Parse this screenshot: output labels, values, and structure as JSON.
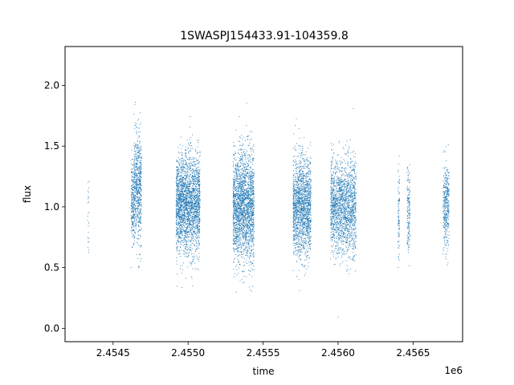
{
  "chart_data": {
    "type": "scatter",
    "title": "1SWASPJ154433.91-104359.8",
    "xlabel": "time",
    "ylabel": "flux",
    "x_offset_label": "1e6",
    "x_ticks": [
      2.4545,
      2.455,
      2.4555,
      2.456,
      2.4565
    ],
    "x_tick_labels": [
      "2.4545",
      "2.4550",
      "2.4555",
      "2.4560",
      "2.4565"
    ],
    "y_ticks": [
      0.0,
      0.5,
      1.0,
      1.5,
      2.0
    ],
    "y_tick_labels": [
      "0.0",
      "0.5",
      "1.0",
      "1.5",
      "2.0"
    ],
    "xlim": [
      2.45418,
      2.45683
    ],
    "ylim": [
      -0.11,
      2.32
    ],
    "grid": false,
    "legend": "none",
    "marker_color": "#1f77b4",
    "series": [
      {
        "clusters": [
          {
            "x": [
              2.45433,
              2.45434
            ],
            "y_center": 0.95,
            "y_spread": 0.45,
            "n": 25
          },
          {
            "x": [
              2.45462,
              2.45464
            ],
            "y_center": 1.05,
            "y_spread": 0.35,
            "n": 220
          },
          {
            "x": [
              2.45464,
              2.45469
            ],
            "y_center": 1.15,
            "y_spread": 0.5,
            "n": 650
          },
          {
            "x": [
              2.45492,
              2.45508
            ],
            "y_center": 1.02,
            "y_spread": 0.45,
            "n": 2400
          },
          {
            "x": [
              2.4553,
              2.45544
            ],
            "y_center": 1.0,
            "y_spread": 0.5,
            "n": 2200
          },
          {
            "x": [
              2.4557,
              2.45582
            ],
            "y_center": 1.0,
            "y_spread": 0.45,
            "n": 1700
          },
          {
            "x": [
              2.45595,
              2.45612
            ],
            "y_center": 1.0,
            "y_spread": 0.42,
            "n": 1800
          },
          {
            "x": [
              2.4564,
              2.45641
            ],
            "y_center": 0.95,
            "y_spread": 0.45,
            "n": 90
          },
          {
            "x": [
              2.45646,
              2.45648
            ],
            "y_center": 0.97,
            "y_spread": 0.38,
            "n": 160
          },
          {
            "x": [
              2.4567,
              2.45674
            ],
            "y_center": 1.0,
            "y_spread": 0.4,
            "n": 380
          }
        ]
      }
    ]
  }
}
